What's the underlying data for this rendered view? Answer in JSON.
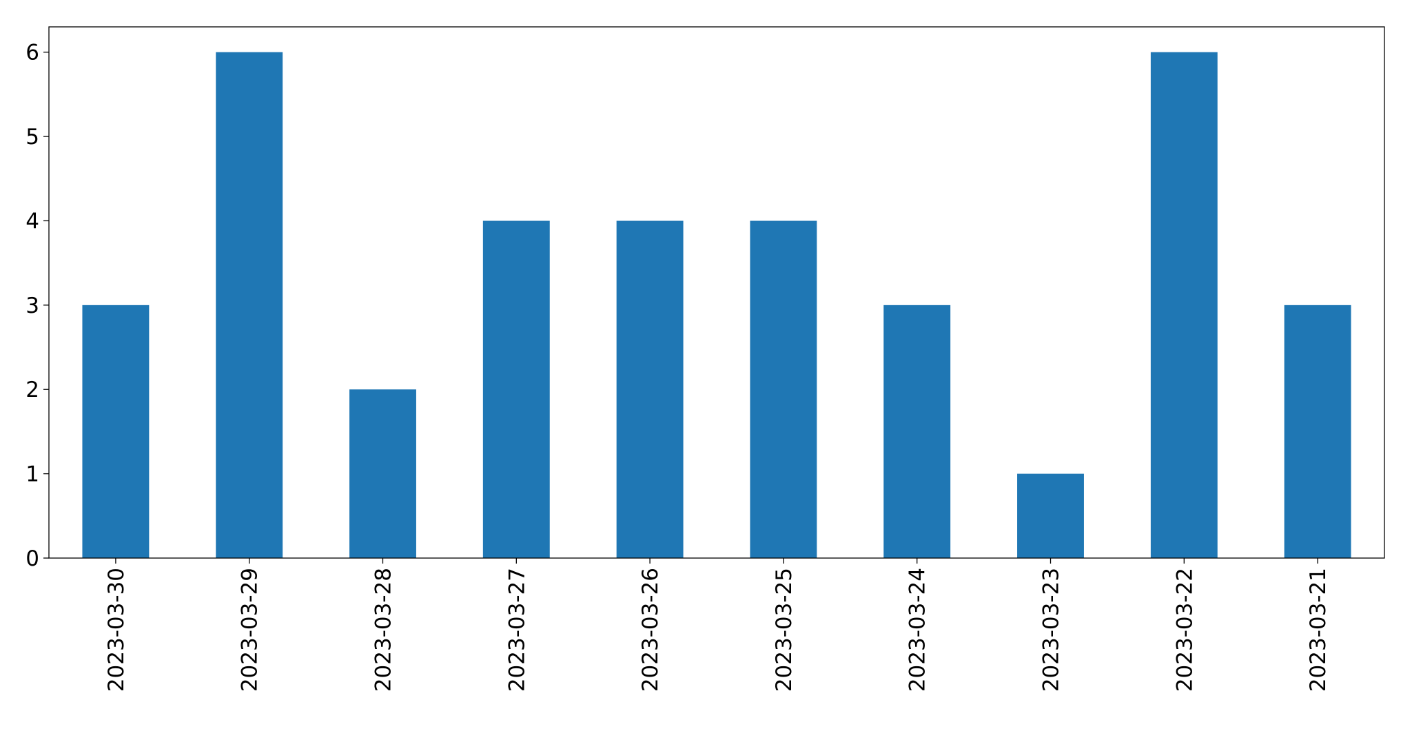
{
  "chart_data": {
    "type": "bar",
    "categories": [
      "2023-03-30",
      "2023-03-29",
      "2023-03-28",
      "2023-03-27",
      "2023-03-26",
      "2023-03-25",
      "2023-03-24",
      "2023-03-23",
      "2023-03-22",
      "2023-03-21"
    ],
    "values": [
      3,
      6,
      2,
      4,
      4,
      4,
      3,
      1,
      6,
      3
    ],
    "color": "#1f77b4",
    "ylim": [
      0,
      6.3
    ],
    "yticks": [
      0,
      1,
      2,
      3,
      4,
      5,
      6
    ],
    "grid": false
  }
}
